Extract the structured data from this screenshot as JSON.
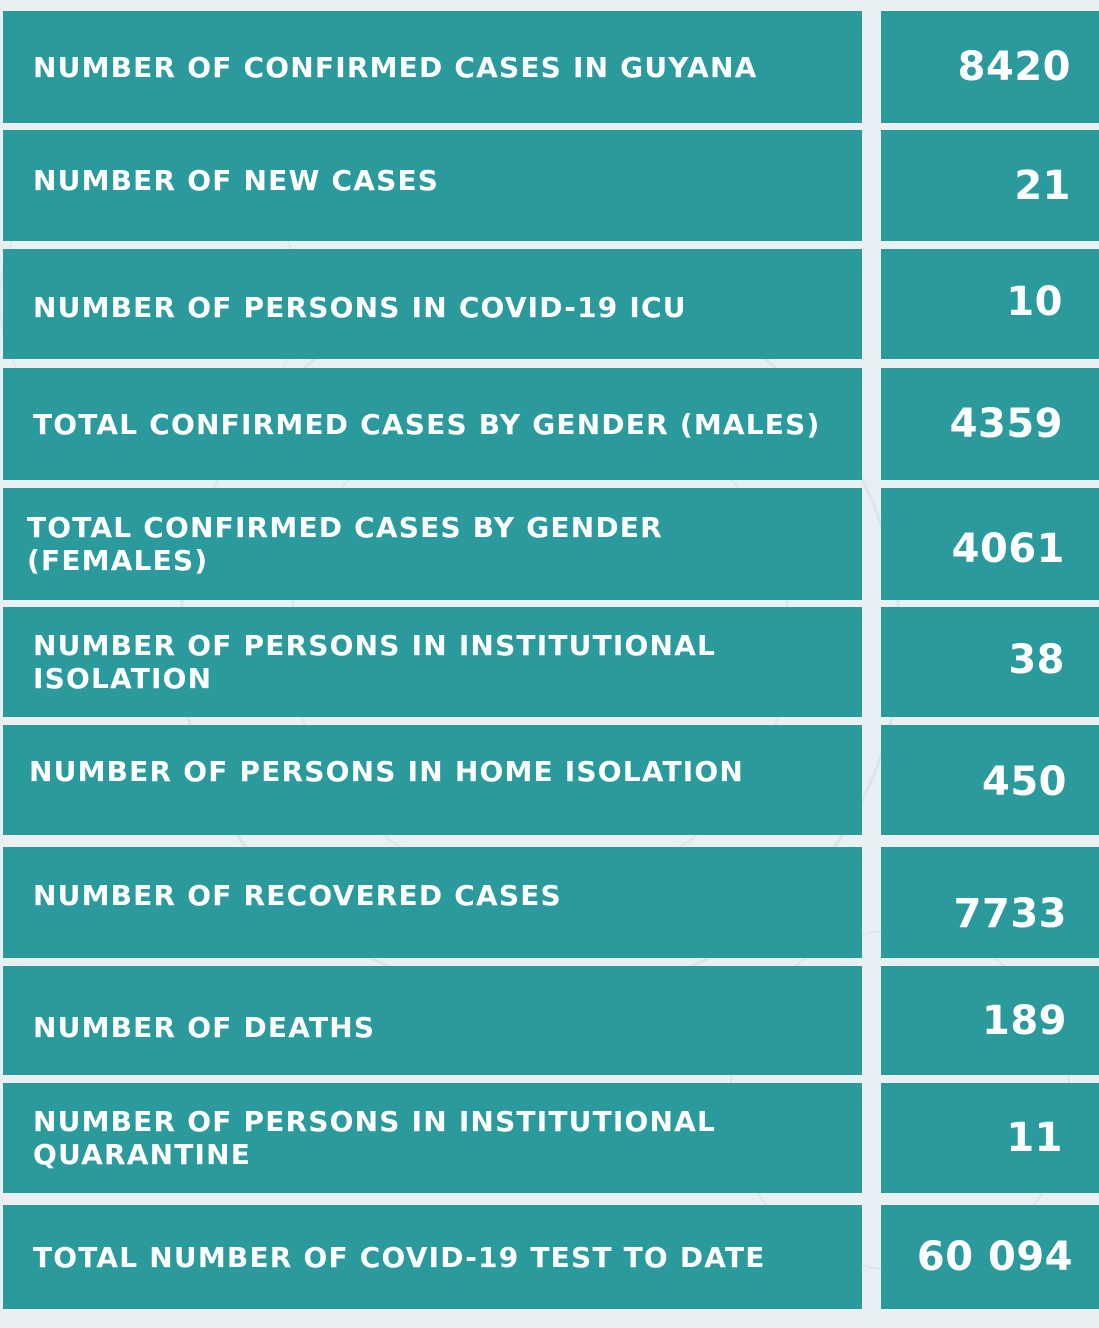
{
  "rows": [
    {
      "label": "NUMBER OF CONFIRMED CASES IN GUYANA",
      "value": "8420"
    },
    {
      "label": "NUMBER OF NEW CASES",
      "value": "21"
    },
    {
      "label": "NUMBER OF PERSONS  IN COVID-19 ICU",
      "value": "10"
    },
    {
      "label": "TOTAL CONFIRMED CASES BY GENDER (MALES)",
      "value": "4359"
    },
    {
      "label": "TOTAL CONFIRMED CASES BY GENDER (FEMALES)",
      "value": "4061"
    },
    {
      "label": "NUMBER OF PERSONS IN INSTITUTIONAL ISOLATION",
      "value": "38"
    },
    {
      "label": "NUMBER OF PERSONS IN HOME ISOLATION",
      "value": "450"
    },
    {
      "label": "NUMBER OF RECOVERED CASES",
      "value": "7733"
    },
    {
      "label": "NUMBER OF DEATHS",
      "value": "189"
    },
    {
      "label": "NUMBER OF PERSONS IN INSTITUTIONAL QUARANTINE",
      "value": "11"
    },
    {
      "label": "TOTAL NUMBER OF COVID-19 TEST TO DATE",
      "value": "60 094"
    }
  ],
  "colors": {
    "cell_background": "#2a9a9d",
    "text": "#ffffff",
    "page_background": "#e9f0f1"
  }
}
